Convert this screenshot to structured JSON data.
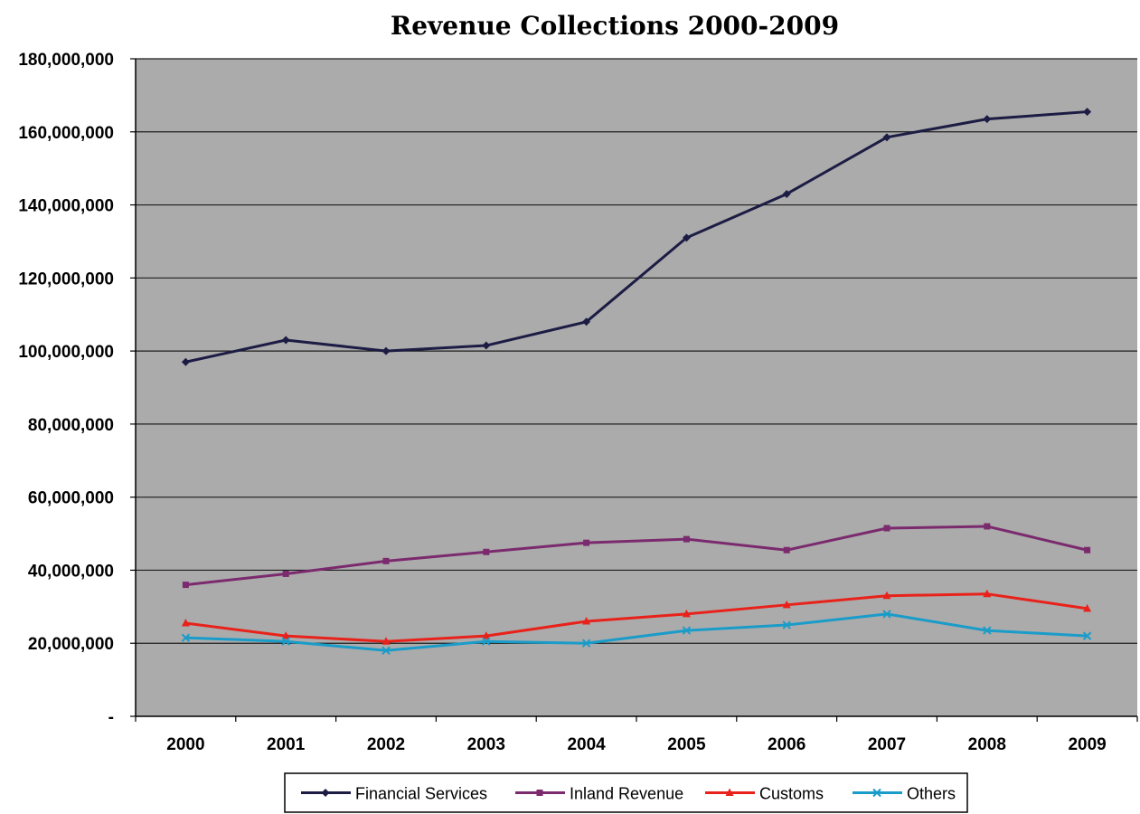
{
  "chart_data": {
    "type": "line",
    "title": "Revenue Collections 2000-2009",
    "xlabel": "",
    "ylabel": "",
    "categories": [
      "2000",
      "2001",
      "2002",
      "2003",
      "2004",
      "2005",
      "2006",
      "2007",
      "2008",
      "2009"
    ],
    "ylim": [
      0,
      180000000
    ],
    "yticks": [
      0,
      20000000,
      40000000,
      60000000,
      80000000,
      100000000,
      120000000,
      140000000,
      160000000,
      180000000
    ],
    "ytick_labels": [
      "-",
      "20,000,000",
      "40,000,000",
      "60,000,000",
      "80,000,000",
      "100,000,000",
      "120,000,000",
      "140,000,000",
      "160,000,000",
      "180,000,000"
    ],
    "grid": true,
    "legend_position": "bottom",
    "plot_background": "#ababab",
    "series": [
      {
        "name": "Financial Services",
        "color": "#1c1c44",
        "marker": "diamond",
        "values": [
          97000000,
          103000000,
          100000000,
          101500000,
          108000000,
          131000000,
          143000000,
          158500000,
          163500000,
          165500000
        ]
      },
      {
        "name": "Inland Revenue",
        "color": "#7b2a6e",
        "marker": "square",
        "values": [
          36000000,
          39000000,
          42500000,
          45000000,
          47500000,
          48500000,
          45500000,
          51500000,
          52000000,
          45500000
        ]
      },
      {
        "name": "Customs",
        "color": "#e8221a",
        "marker": "triangle",
        "values": [
          25500000,
          22000000,
          20500000,
          22000000,
          26000000,
          28000000,
          30500000,
          33000000,
          33500000,
          29500000
        ]
      },
      {
        "name": "Others",
        "color": "#1a9cc9",
        "marker": "x",
        "values": [
          21500000,
          20500000,
          18000000,
          20500000,
          20000000,
          23500000,
          25000000,
          28000000,
          23500000,
          22000000
        ]
      }
    ]
  }
}
